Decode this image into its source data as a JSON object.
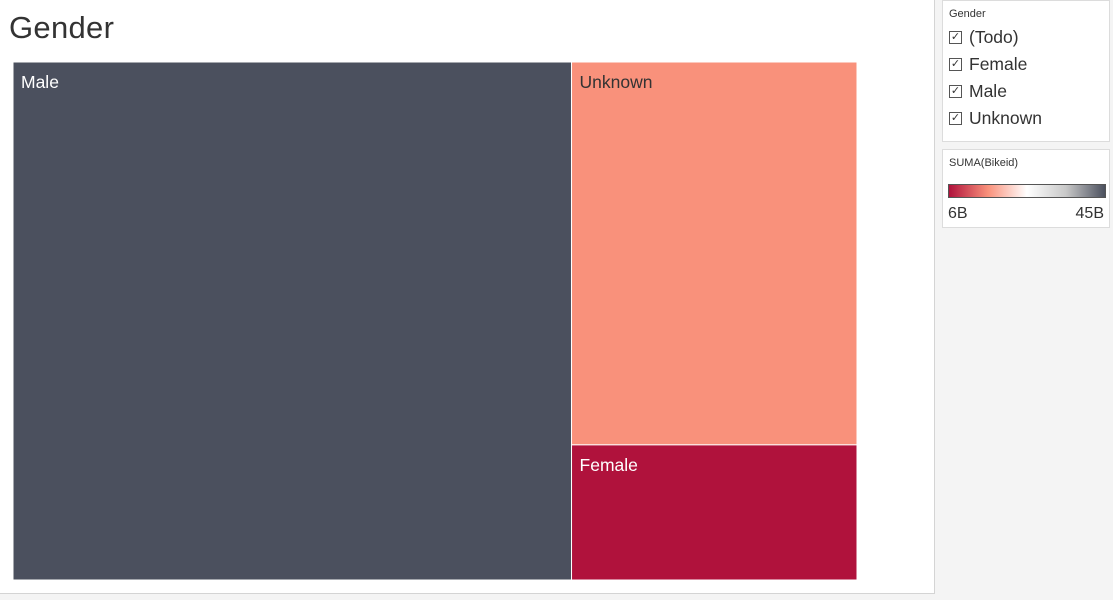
{
  "chart_data": {
    "type": "treemap",
    "title": "Gender",
    "items": [
      {
        "name": "Male",
        "value": 45,
        "color": "#4b505e",
        "label_color": "#ffffff"
      },
      {
        "name": "Unknown",
        "value": 17,
        "color": "#f9917b",
        "label_color": "#333333"
      },
      {
        "name": "Female",
        "value": 6,
        "color": "#b0123c",
        "label_color": "#ffffff"
      }
    ],
    "unit": "B"
  },
  "filter": {
    "title": "Gender",
    "items": [
      {
        "label": "(Todo)",
        "checked": true
      },
      {
        "label": "Female",
        "checked": true
      },
      {
        "label": "Male",
        "checked": true
      },
      {
        "label": "Unknown",
        "checked": true
      }
    ]
  },
  "legend": {
    "title": "SUMA(Bikeid)",
    "min_label": "6B",
    "max_label": "45B",
    "colors": [
      "#b0123c",
      "#f9917b",
      "#ffffff",
      "#c8c8c8",
      "#4b505e"
    ]
  }
}
